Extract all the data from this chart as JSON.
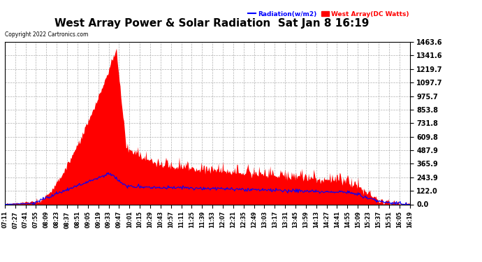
{
  "title": "West Array Power & Solar Radiation  Sat Jan 8 16:19",
  "copyright": "Copyright 2022 Cartronics.com",
  "legend_radiation": "Radiation(w/m2)",
  "legend_west": "West Array(DC Watts)",
  "yticks": [
    0.0,
    122.0,
    243.9,
    365.9,
    487.9,
    609.8,
    731.8,
    853.8,
    975.7,
    1097.7,
    1219.7,
    1341.6,
    1463.6
  ],
  "ymax": 1463.6,
  "ymin": 0.0,
  "background_color": "#ffffff",
  "grid_color": "#b0b0b0",
  "fill_color": "#ff0000",
  "line_color": "#0000ff",
  "title_fontsize": 11,
  "xtick_labels": [
    "07:11",
    "07:27",
    "07:41",
    "07:55",
    "08:09",
    "08:23",
    "08:37",
    "08:51",
    "09:05",
    "09:19",
    "09:33",
    "09:47",
    "10:01",
    "10:15",
    "10:29",
    "10:43",
    "10:57",
    "11:11",
    "11:25",
    "11:39",
    "11:53",
    "12:07",
    "12:21",
    "12:35",
    "12:49",
    "13:03",
    "13:17",
    "13:31",
    "13:45",
    "13:59",
    "14:13",
    "14:27",
    "14:41",
    "14:55",
    "15:09",
    "15:23",
    "15:37",
    "15:51",
    "16:05",
    "16:19"
  ],
  "radiation_scale": 1.0,
  "n_points": 549
}
